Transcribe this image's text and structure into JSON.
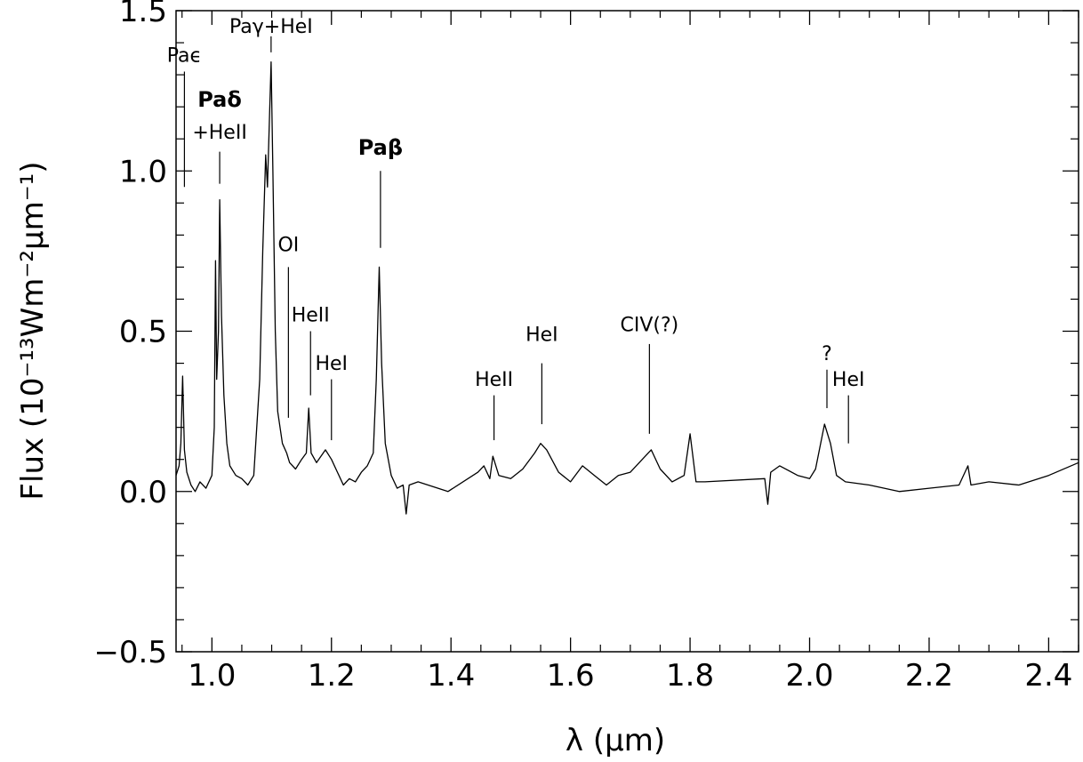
{
  "chart_data": {
    "type": "line",
    "title": "",
    "xlabel": "λ (μm)",
    "ylabel": "Flux (10⁻¹³Wm⁻²μm⁻¹)",
    "xlim": [
      0.94,
      2.45
    ],
    "ylim": [
      -0.5,
      1.5
    ],
    "x_ticks": [
      1.0,
      1.2,
      1.4,
      1.6,
      1.8,
      2.0,
      2.2,
      2.4
    ],
    "x_tick_labels": [
      "1.0",
      "1.2",
      "1.4",
      "1.6",
      "1.8",
      "2.0",
      "2.2",
      "2.4"
    ],
    "y_ticks": [
      -0.5,
      0.0,
      0.5,
      1.0,
      1.5
    ],
    "y_tick_labels": [
      "−0.5",
      "0.0",
      "0.5",
      "1.0",
      "1.5"
    ],
    "grid": false,
    "legend": "none",
    "line_color": "#000000",
    "series": [
      {
        "values": [
          [
            0.94,
            0.05
          ],
          [
            0.945,
            0.08
          ],
          [
            0.948,
            0.15
          ],
          [
            0.951,
            0.36
          ],
          [
            0.954,
            0.13
          ],
          [
            0.958,
            0.06
          ],
          [
            0.965,
            0.02
          ],
          [
            0.972,
            0.0
          ],
          [
            0.98,
            0.03
          ],
          [
            0.99,
            0.01
          ],
          [
            1.0,
            0.05
          ],
          [
            1.004,
            0.2
          ],
          [
            1.006,
            0.72
          ],
          [
            1.008,
            0.35
          ],
          [
            1.011,
            0.5
          ],
          [
            1.013,
            0.91
          ],
          [
            1.016,
            0.55
          ],
          [
            1.02,
            0.3
          ],
          [
            1.025,
            0.15
          ],
          [
            1.03,
            0.08
          ],
          [
            1.04,
            0.05
          ],
          [
            1.05,
            0.04
          ],
          [
            1.06,
            0.02
          ],
          [
            1.07,
            0.05
          ],
          [
            1.08,
            0.35
          ],
          [
            1.085,
            0.75
          ],
          [
            1.09,
            1.05
          ],
          [
            1.093,
            0.95
          ],
          [
            1.096,
            1.15
          ],
          [
            1.099,
            1.34
          ],
          [
            1.102,
            1.0
          ],
          [
            1.106,
            0.5
          ],
          [
            1.11,
            0.25
          ],
          [
            1.118,
            0.15
          ],
          [
            1.125,
            0.12
          ],
          [
            1.13,
            0.09
          ],
          [
            1.14,
            0.07
          ],
          [
            1.15,
            0.1
          ],
          [
            1.158,
            0.12
          ],
          [
            1.162,
            0.26
          ],
          [
            1.166,
            0.12
          ],
          [
            1.175,
            0.09
          ],
          [
            1.19,
            0.13
          ],
          [
            1.2,
            0.1
          ],
          [
            1.21,
            0.06
          ],
          [
            1.22,
            0.02
          ],
          [
            1.23,
            0.04
          ],
          [
            1.24,
            0.03
          ],
          [
            1.25,
            0.06
          ],
          [
            1.26,
            0.08
          ],
          [
            1.27,
            0.12
          ],
          [
            1.275,
            0.35
          ],
          [
            1.28,
            0.7
          ],
          [
            1.284,
            0.4
          ],
          [
            1.29,
            0.15
          ],
          [
            1.3,
            0.05
          ],
          [
            1.31,
            0.01
          ],
          [
            1.32,
            0.02
          ],
          [
            1.325,
            -0.07
          ],
          [
            1.33,
            0.02
          ],
          [
            1.345,
            0.03
          ],
          [
            1.395,
            0.0
          ],
          [
            1.445,
            0.06
          ],
          [
            1.455,
            0.08
          ],
          [
            1.465,
            0.04
          ],
          [
            1.47,
            0.11
          ],
          [
            1.48,
            0.05
          ],
          [
            1.5,
            0.04
          ],
          [
            1.52,
            0.07
          ],
          [
            1.54,
            0.12
          ],
          [
            1.55,
            0.15
          ],
          [
            1.56,
            0.13
          ],
          [
            1.58,
            0.06
          ],
          [
            1.6,
            0.03
          ],
          [
            1.62,
            0.08
          ],
          [
            1.64,
            0.05
          ],
          [
            1.66,
            0.02
          ],
          [
            1.68,
            0.05
          ],
          [
            1.7,
            0.06
          ],
          [
            1.72,
            0.1
          ],
          [
            1.735,
            0.13
          ],
          [
            1.75,
            0.07
          ],
          [
            1.77,
            0.03
          ],
          [
            1.79,
            0.05
          ],
          [
            1.8,
            0.18
          ],
          [
            1.81,
            0.03
          ],
          [
            1.825,
            0.03
          ],
          [
            1.925,
            0.04
          ],
          [
            1.93,
            -0.04
          ],
          [
            1.935,
            0.06
          ],
          [
            1.95,
            0.08
          ],
          [
            1.98,
            0.05
          ],
          [
            2.0,
            0.04
          ],
          [
            2.01,
            0.07
          ],
          [
            2.025,
            0.21
          ],
          [
            2.035,
            0.15
          ],
          [
            2.045,
            0.05
          ],
          [
            2.06,
            0.03
          ],
          [
            2.1,
            0.02
          ],
          [
            2.15,
            0.0
          ],
          [
            2.2,
            0.01
          ],
          [
            2.25,
            0.02
          ],
          [
            2.265,
            0.08
          ],
          [
            2.27,
            0.02
          ],
          [
            2.3,
            0.03
          ],
          [
            2.35,
            0.02
          ],
          [
            2.4,
            0.05
          ],
          [
            2.45,
            0.09
          ]
        ]
      }
    ],
    "annotations": [
      {
        "label": "Paϵ",
        "x": 0.954,
        "tick_y": [
          0.95,
          1.31
        ],
        "text_y": 1.34,
        "bold": false
      },
      {
        "label": "Paδ",
        "x": 1.013,
        "tick_y": [
          0.96,
          1.06
        ],
        "text_y": 1.2,
        "bold": true
      },
      {
        "label": "+HeII",
        "x": 1.013,
        "tick_y": null,
        "text_y": 1.1,
        "bold": false
      },
      {
        "label": "Paγ+HeI",
        "x": 1.099,
        "tick_y": [
          1.37,
          1.42
        ],
        "text_y": 1.43,
        "bold": false
      },
      {
        "label": "OI",
        "x": 1.128,
        "tick_y": [
          0.23,
          0.7
        ],
        "text_y": 0.75,
        "bold": false
      },
      {
        "label": "HeII",
        "x": 1.165,
        "tick_y": [
          0.3,
          0.5
        ],
        "text_y": 0.53,
        "bold": false
      },
      {
        "label": "HeI",
        "x": 1.2,
        "tick_y": [
          0.16,
          0.35
        ],
        "text_y": 0.38,
        "bold": false
      },
      {
        "label": "Paβ",
        "x": 1.282,
        "tick_y": [
          0.76,
          1.0
        ],
        "text_y": 1.05,
        "bold": true
      },
      {
        "label": "HeII",
        "x": 1.472,
        "tick_y": [
          0.16,
          0.3
        ],
        "text_y": 0.33,
        "bold": false
      },
      {
        "label": "HeI",
        "x": 1.552,
        "tick_y": [
          0.21,
          0.4
        ],
        "text_y": 0.47,
        "bold": false
      },
      {
        "label": "CIV(?)",
        "x": 1.732,
        "tick_y": [
          0.18,
          0.46
        ],
        "text_y": 0.5,
        "bold": false
      },
      {
        "label": "?",
        "x": 2.029,
        "tick_y": [
          0.26,
          0.38
        ],
        "text_y": 0.41,
        "bold": false
      },
      {
        "label": "HeI",
        "x": 2.065,
        "tick_y": [
          0.15,
          0.3
        ],
        "text_y": 0.33,
        "bold": false
      }
    ]
  }
}
